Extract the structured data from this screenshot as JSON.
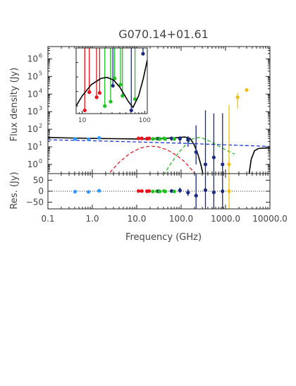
{
  "chart_data": [
    {
      "type": "scatter",
      "panel": "sed-main",
      "title": "G070.14+01.61",
      "ylabel": "Flux density (Jy)",
      "xscale": "log",
      "yscale": "log",
      "xlim": [
        0.1,
        10000
      ],
      "ylim": [
        0.3,
        5000000
      ],
      "xticks": [
        {
          "v": 0.1,
          "label": "0.1"
        },
        {
          "v": 1,
          "label": "1.0"
        },
        {
          "v": 10,
          "label": "10.0"
        },
        {
          "v": 100,
          "label": "100.0"
        },
        {
          "v": 1000,
          "label": "1000.0"
        },
        {
          "v": 10000,
          "label": "10000.0"
        }
      ],
      "yticks": [
        {
          "v": 1,
          "label": "10",
          "exp": "0"
        },
        {
          "v": 10,
          "label": "10",
          "exp": "1"
        },
        {
          "v": 100,
          "label": "10",
          "exp": "2"
        },
        {
          "v": 1000,
          "label": "10",
          "exp": "3"
        },
        {
          "v": 10000,
          "label": "10",
          "exp": "4"
        },
        {
          "v": 100000,
          "label": "10",
          "exp": "5"
        },
        {
          "v": 1000000,
          "label": "10",
          "exp": "6"
        }
      ],
      "points": [
        {
          "x": 0.408,
          "y": 28,
          "err": 3,
          "color": "#3399ff"
        },
        {
          "x": 0.82,
          "y": 27,
          "err": 3,
          "color": "#3399ff"
        },
        {
          "x": 1.42,
          "y": 32,
          "err": 3,
          "color": "#3399ff"
        },
        {
          "x": 11,
          "y": 30,
          "err": 4,
          "color": "#e8101a"
        },
        {
          "x": 13,
          "y": 30,
          "err": 4,
          "color": "#e8101a"
        },
        {
          "x": 17,
          "y": 29,
          "err": 4,
          "color": "#e8101a"
        },
        {
          "x": 19,
          "y": 30,
          "err": 4,
          "color": "#e8101a"
        },
        {
          "x": 23,
          "y": 28,
          "err": 4,
          "color": "#20c020"
        },
        {
          "x": 28.5,
          "y": 29,
          "err": 4,
          "color": "#20c020"
        },
        {
          "x": 31,
          "y": 29,
          "err": 4,
          "color": "#1a2a80"
        },
        {
          "x": 33,
          "y": 28,
          "err": 4,
          "color": "#20c020"
        },
        {
          "x": 41,
          "y": 30,
          "err": 4,
          "color": "#20c020"
        },
        {
          "x": 44,
          "y": 28,
          "err": 4,
          "color": "#20c020"
        },
        {
          "x": 61,
          "y": 30,
          "err": 8,
          "color": "#1a2a80"
        },
        {
          "x": 70,
          "y": 28,
          "err": 4,
          "color": "#20c020"
        },
        {
          "x": 94,
          "y": 29,
          "err": 12,
          "color": "#1a2a80"
        },
        {
          "x": 143,
          "y": 25,
          "err": 15,
          "color": "#1a2a80"
        },
        {
          "x": 217,
          "y": 5,
          "errlo": 4,
          "errhi": 160,
          "color": "#1a2a80"
        },
        {
          "x": 353,
          "y": 1,
          "errlo": 0.7,
          "errhi": 1200,
          "color": "#1a2a80"
        },
        {
          "x": 545,
          "y": 2.5,
          "errlo": 2.2,
          "errhi": 800,
          "color": "#1a2a80"
        },
        {
          "x": 857,
          "y": 1,
          "errlo": 0.7,
          "errhi": 800,
          "color": "#1a2a80"
        },
        {
          "x": 1200,
          "y": 1,
          "errlo": 0.7,
          "errhi": 2400,
          "color": "#f0c010"
        },
        {
          "x": 1870,
          "y": 6500,
          "err": 5000,
          "color": "#f0c010"
        },
        {
          "x": 3000,
          "y": 17000,
          "err": 3000,
          "color": "#f0c010"
        }
      ],
      "models": [
        {
          "name": "",
          "color": "#000000",
          "style": "solid",
          "points": [
            [
              0.1,
              34
            ],
            [
              0.3,
              32
            ],
            [
              1,
              30
            ],
            [
              3,
              29
            ],
            [
              10,
              28
            ],
            [
              15,
              28
            ],
            [
              20,
              28.5
            ],
            [
              30,
              29.5
            ],
            [
              50,
              31
            ],
            [
              80,
              33
            ],
            [
              120,
              36
            ],
            [
              160,
              30
            ],
            [
              200,
              12
            ],
            [
              240,
              3.5
            ],
            [
              280,
              0.9
            ],
            [
              320,
              0.2
            ]
          ]
        },
        {
          "name": "",
          "color": "#000000",
          "style": "solid",
          "points": [
            [
              3400,
              0.3
            ],
            [
              3800,
              2
            ],
            [
              4500,
              6
            ],
            [
              5500,
              8
            ],
            [
              7000,
              8.5
            ],
            [
              10000,
              8.5
            ]
          ]
        },
        {
          "name": "",
          "color": "#1030c0",
          "style": "dashed",
          "points": [
            [
              0.1,
              25
            ],
            [
              1,
              22
            ],
            [
              10,
              19
            ],
            [
              100,
              16
            ],
            [
              1000,
              13
            ],
            [
              10000,
              10.5
            ]
          ]
        },
        {
          "name": "",
          "color": "#e01020",
          "style": "dashed",
          "points": [
            [
              2.5,
              0.35
            ],
            [
              4,
              1.3
            ],
            [
              7,
              4.2
            ],
            [
              12,
              8.5
            ],
            [
              20,
              11
            ],
            [
              30,
              10
            ],
            [
              50,
              6.5
            ],
            [
              80,
              3.2
            ],
            [
              120,
              1.4
            ],
            [
              180,
              0.45
            ],
            [
              230,
              0.2
            ]
          ]
        },
        {
          "name": "",
          "color": "#20b020",
          "style": "dashed",
          "points": [
            [
              40,
              0.25
            ],
            [
              60,
              1.2
            ],
            [
              90,
              5
            ],
            [
              130,
              14
            ],
            [
              180,
              28
            ],
            [
              240,
              34
            ],
            [
              320,
              30
            ],
            [
              450,
              20
            ],
            [
              700,
              11
            ],
            [
              1100,
              6
            ],
            [
              1600,
              3.8
            ]
          ]
        }
      ]
    },
    {
      "type": "scatter",
      "panel": "residuals",
      "ylabel": "Res. (Jy)",
      "xlabel": "Frequency (GHz)",
      "xscale": "log",
      "xlim": [
        0.1,
        10000
      ],
      "ylim": [
        -80,
        80
      ],
      "yticks": [
        {
          "v": 50,
          "label": "50"
        },
        {
          "v": 0,
          "label": "0"
        },
        {
          "v": -50,
          "label": "−50"
        }
      ],
      "points": [
        {
          "x": 0.408,
          "y": -2,
          "err": 3,
          "color": "#3399ff"
        },
        {
          "x": 0.82,
          "y": -3,
          "err": 3,
          "color": "#3399ff"
        },
        {
          "x": 1.42,
          "y": 2,
          "err": 3,
          "color": "#3399ff"
        },
        {
          "x": 11,
          "y": 1,
          "err": 4,
          "color": "#e8101a"
        },
        {
          "x": 13,
          "y": 1,
          "err": 4,
          "color": "#e8101a"
        },
        {
          "x": 17,
          "y": 0,
          "err": 4,
          "color": "#e8101a"
        },
        {
          "x": 19,
          "y": 1,
          "err": 4,
          "color": "#e8101a"
        },
        {
          "x": 23,
          "y": -1,
          "err": 4,
          "color": "#20c020"
        },
        {
          "x": 28.5,
          "y": 0,
          "err": 4,
          "color": "#20c020"
        },
        {
          "x": 31,
          "y": 0,
          "err": 4,
          "color": "#1a2a80"
        },
        {
          "x": 33,
          "y": -1,
          "err": 4,
          "color": "#20c020"
        },
        {
          "x": 41,
          "y": 1,
          "err": 4,
          "color": "#20c020"
        },
        {
          "x": 44,
          "y": -1,
          "err": 4,
          "color": "#20c020"
        },
        {
          "x": 61,
          "y": 1,
          "err": 8,
          "color": "#1a2a80"
        },
        {
          "x": 70,
          "y": -1,
          "err": 4,
          "color": "#20c020"
        },
        {
          "x": 94,
          "y": 4,
          "err": 12,
          "color": "#1a2a80"
        },
        {
          "x": 143,
          "y": -6,
          "err": 15,
          "color": "#1a2a80"
        },
        {
          "x": 217,
          "y": -20,
          "err": 160,
          "color": "#1a2a80"
        },
        {
          "x": 353,
          "y": 5,
          "err": 1200,
          "color": "#1a2a80"
        },
        {
          "x": 545,
          "y": -5,
          "err": 800,
          "color": "#1a2a80"
        },
        {
          "x": 857,
          "y": 0,
          "err": 800,
          "color": "#1a2a80"
        },
        {
          "x": 1200,
          "y": 0,
          "err": 2400,
          "color": "#f0c010"
        }
      ]
    },
    {
      "type": "scatter",
      "panel": "inset-zoom",
      "xscale": "log",
      "yscale": "log",
      "xlim": [
        8,
        110
      ],
      "ylim": [
        0.3,
        10000
      ],
      "xticks": [
        {
          "v": 10,
          "label": "10"
        },
        {
          "v": 100,
          "label": "100"
        }
      ],
      "points": [
        {
          "x": 11,
          "y": 0.5,
          "errhi": 15000,
          "color": "#e8101a"
        },
        {
          "x": 13,
          "y": 9,
          "errhi": 15000,
          "color": "#e8101a"
        },
        {
          "x": 17,
          "y": 4,
          "errhi": 15000,
          "color": "#e8101a"
        },
        {
          "x": 19,
          "y": 8,
          "errhi": 15000,
          "color": "#e8101a"
        },
        {
          "x": 23,
          "y": 1,
          "errhi": 15000,
          "color": "#20c020"
        },
        {
          "x": 28.5,
          "y": 2,
          "errhi": 15000,
          "color": "#20c020"
        },
        {
          "x": 31,
          "y": 25,
          "errhi": 15000,
          "color": "#1a2a80"
        },
        {
          "x": 33,
          "y": 80,
          "errhi": 15000,
          "color": "#20c020"
        },
        {
          "x": 41,
          "y": 30,
          "errhi": 15000,
          "color": "#20c020"
        },
        {
          "x": 44,
          "y": 5,
          "errhi": 15000,
          "color": "#20c020"
        },
        {
          "x": 61,
          "y": 0.5,
          "errhi": 15000,
          "color": "#1a2a80"
        },
        {
          "x": 70,
          "y": 3,
          "errhi": 15000,
          "color": "#20c020"
        },
        {
          "x": 94,
          "y": 4000,
          "errhi": 15000,
          "color": "#1a2a80"
        }
      ],
      "models": [
        {
          "name": "",
          "color": "#000000",
          "style": "solid",
          "points": [
            [
              8,
              1
            ],
            [
              10,
              5
            ],
            [
              14,
              30
            ],
            [
              20,
              80
            ],
            [
              25,
              95
            ],
            [
              32,
              60
            ],
            [
              40,
              20
            ],
            [
              55,
              2
            ],
            [
              65,
              0.8
            ],
            [
              80,
              5
            ],
            [
              95,
              80
            ],
            [
              110,
              1500
            ]
          ]
        }
      ]
    }
  ]
}
